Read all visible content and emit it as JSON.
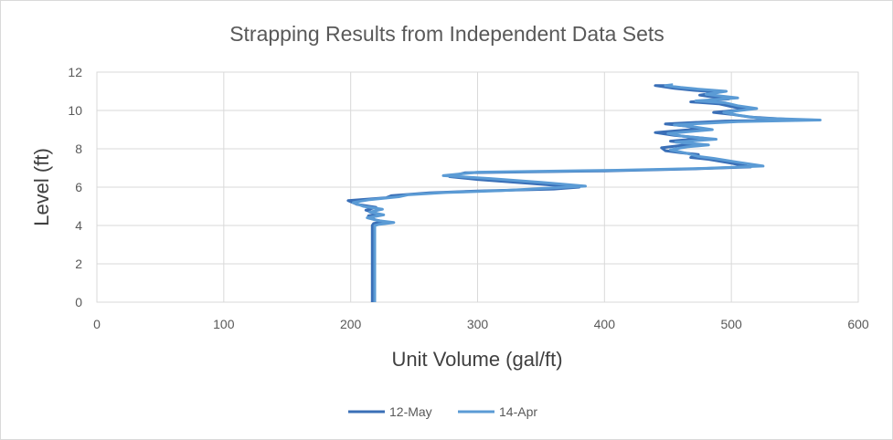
{
  "chart_data": {
    "type": "line",
    "title": "Strapping Results from Independent  Data Sets",
    "xlabel": "Unit Volume (gal/ft)",
    "ylabel": "Level (ft)",
    "xlim": [
      0,
      600
    ],
    "ylim": [
      0,
      12
    ],
    "x_ticks": [
      0,
      100,
      200,
      300,
      400,
      500,
      600
    ],
    "y_ticks": [
      0,
      2,
      4,
      6,
      8,
      10,
      12
    ],
    "grid": true,
    "legend_position": "bottom",
    "series": [
      {
        "name": "12-May",
        "color": "#3a6fb7",
        "points": [
          [
            217,
            0
          ],
          [
            217,
            2
          ],
          [
            217,
            4
          ],
          [
            218,
            4.1
          ],
          [
            226,
            4.2
          ],
          [
            219,
            4.3
          ],
          [
            214,
            4.5
          ],
          [
            222,
            4.6
          ],
          [
            212,
            4.8
          ],
          [
            220,
            4.95
          ],
          [
            205,
            5.1
          ],
          [
            198,
            5.3
          ],
          [
            228,
            5.45
          ],
          [
            232,
            5.55
          ],
          [
            262,
            5.7
          ],
          [
            300,
            5.8
          ],
          [
            360,
            5.9
          ],
          [
            380,
            6.0
          ],
          [
            340,
            6.2
          ],
          [
            300,
            6.4
          ],
          [
            278,
            6.55
          ],
          [
            290,
            6.75
          ],
          [
            400,
            6.85
          ],
          [
            470,
            6.95
          ],
          [
            515,
            7.05
          ],
          [
            500,
            7.25
          ],
          [
            482,
            7.45
          ],
          [
            468,
            7.55
          ],
          [
            474,
            7.7
          ],
          [
            460,
            7.8
          ],
          [
            448,
            7.9
          ],
          [
            445,
            8.05
          ],
          [
            470,
            8.25
          ],
          [
            452,
            8.4
          ],
          [
            478,
            8.55
          ],
          [
            455,
            8.7
          ],
          [
            440,
            8.85
          ],
          [
            478,
            9.05
          ],
          [
            462,
            9.2
          ],
          [
            448,
            9.3
          ],
          [
            495,
            9.45
          ],
          [
            555,
            9.5
          ],
          [
            515,
            9.65
          ],
          [
            500,
            9.8
          ],
          [
            486,
            9.9
          ],
          [
            512,
            10.05
          ],
          [
            500,
            10.2
          ],
          [
            490,
            10.35
          ],
          [
            468,
            10.45
          ],
          [
            498,
            10.6
          ],
          [
            485,
            10.7
          ],
          [
            475,
            10.8
          ],
          [
            490,
            10.95
          ],
          [
            470,
            11.05
          ],
          [
            455,
            11.15
          ],
          [
            440,
            11.3
          ],
          [
            450,
            11.3
          ]
        ]
      },
      {
        "name": "14-Apr",
        "color": "#5b9bd5",
        "points": [
          [
            219,
            0
          ],
          [
            219,
            2
          ],
          [
            219,
            4
          ],
          [
            222,
            4.05
          ],
          [
            234,
            4.15
          ],
          [
            222,
            4.25
          ],
          [
            213,
            4.4
          ],
          [
            226,
            4.55
          ],
          [
            215,
            4.7
          ],
          [
            225,
            4.85
          ],
          [
            210,
            5.0
          ],
          [
            202,
            5.2
          ],
          [
            215,
            5.35
          ],
          [
            238,
            5.5
          ],
          [
            245,
            5.6
          ],
          [
            275,
            5.72
          ],
          [
            320,
            5.82
          ],
          [
            385,
            6.05
          ],
          [
            350,
            6.25
          ],
          [
            310,
            6.45
          ],
          [
            273,
            6.6
          ],
          [
            300,
            6.78
          ],
          [
            410,
            6.88
          ],
          [
            480,
            6.98
          ],
          [
            525,
            7.1
          ],
          [
            505,
            7.3
          ],
          [
            486,
            7.5
          ],
          [
            474,
            7.6
          ],
          [
            466,
            7.75
          ],
          [
            452,
            7.95
          ],
          [
            465,
            8.1
          ],
          [
            482,
            8.2
          ],
          [
            456,
            8.35
          ],
          [
            488,
            8.5
          ],
          [
            462,
            8.65
          ],
          [
            450,
            8.8
          ],
          [
            485,
            9.0
          ],
          [
            470,
            9.15
          ],
          [
            455,
            9.25
          ],
          [
            505,
            9.42
          ],
          [
            570,
            9.5
          ],
          [
            522,
            9.6
          ],
          [
            506,
            9.75
          ],
          [
            494,
            9.9
          ],
          [
            520,
            10.1
          ],
          [
            505,
            10.25
          ],
          [
            495,
            10.4
          ],
          [
            472,
            10.5
          ],
          [
            505,
            10.65
          ],
          [
            492,
            10.75
          ],
          [
            480,
            10.85
          ],
          [
            496,
            11.0
          ],
          [
            476,
            11.1
          ],
          [
            460,
            11.2
          ],
          [
            448,
            11.3
          ],
          [
            454,
            11.35
          ]
        ]
      }
    ]
  }
}
